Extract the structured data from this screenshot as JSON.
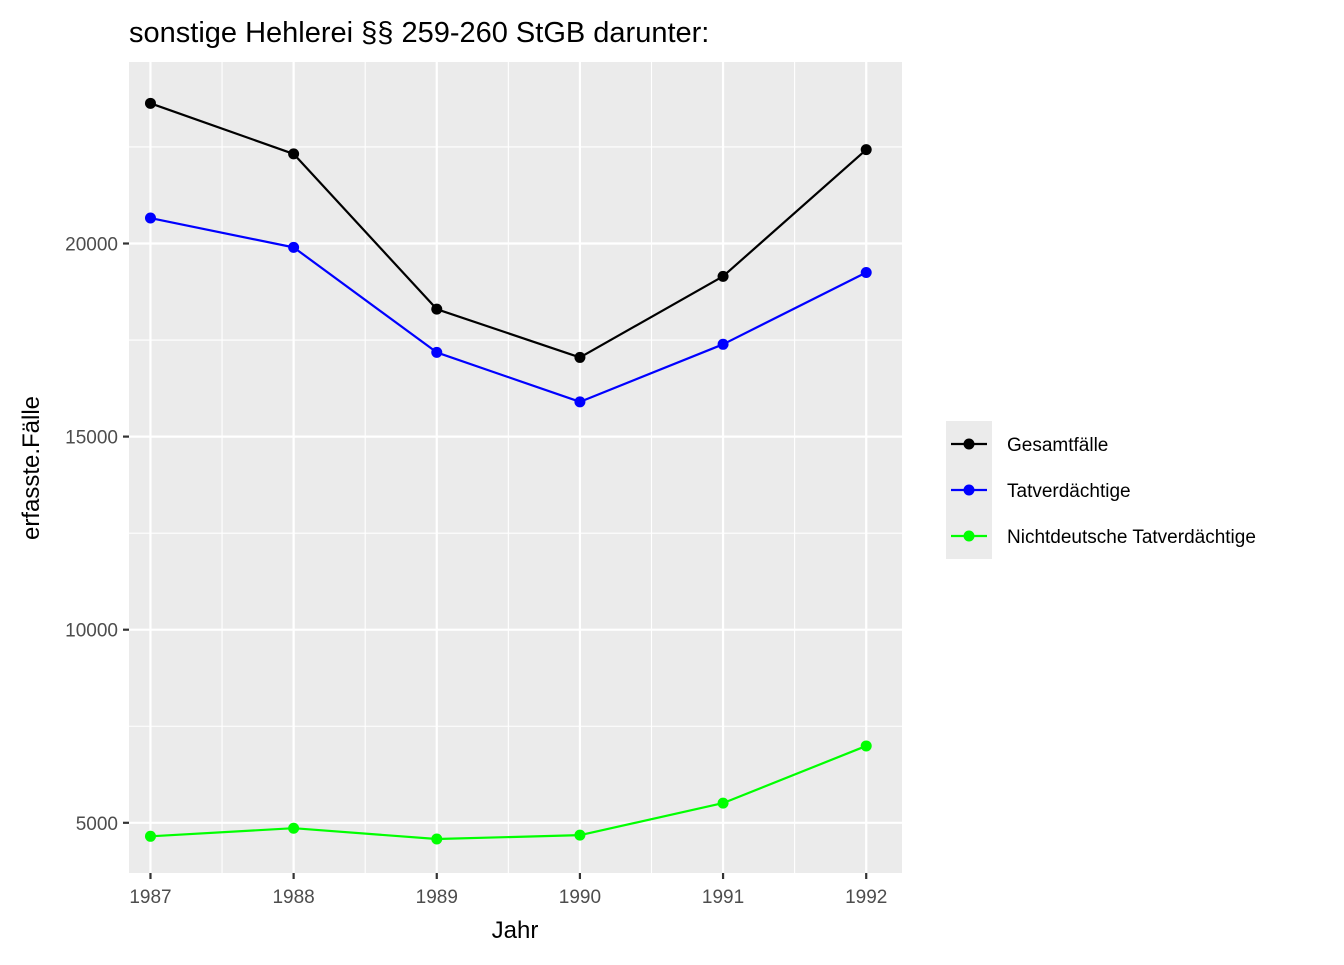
{
  "chart_data": {
    "type": "line",
    "title": "sonstige Hehlerei §§ 259-260 StGB darunter:",
    "xlabel": "Jahr",
    "ylabel": "erfasste.Fälle",
    "x": [
      1987,
      1988,
      1989,
      1990,
      1991,
      1992
    ],
    "x_tick_labels": [
      "1987",
      "1988",
      "1989",
      "1990",
      "1991",
      "1992"
    ],
    "xlim": [
      1986.85,
      1992.25
    ],
    "ylim": [
      3700,
      24700
    ],
    "y_ticks": [
      5000,
      10000,
      15000,
      20000
    ],
    "y_tick_labels": [
      "5000",
      "10000",
      "15000",
      "20000"
    ],
    "grid": true,
    "legend_position": "right",
    "series": [
      {
        "name": "Gesamtfälle",
        "color": "#000000",
        "values": [
          23630,
          22320,
          18300,
          17050,
          19150,
          22430
        ]
      },
      {
        "name": "Tatverdächtige",
        "color": "#0000ff",
        "values": [
          20660,
          19900,
          17180,
          15900,
          17390,
          19250
        ]
      },
      {
        "name": "Nichtdeutsche Tatverdächtige",
        "color": "#00ff00",
        "values": [
          4650,
          4860,
          4580,
          4680,
          5510,
          6990
        ]
      }
    ]
  }
}
